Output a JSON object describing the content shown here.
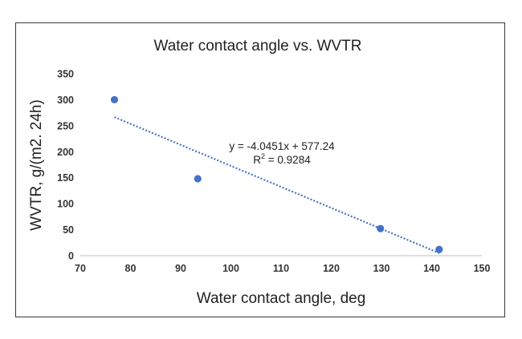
{
  "chart_data": {
    "type": "scatter",
    "title": "Water contact angle vs. WVTR",
    "xlabel": "Water contact angle, deg",
    "ylabel": "WVTR, g/(m2. 24h)",
    "xlim": [
      70,
      150
    ],
    "ylim": [
      0,
      350
    ],
    "xticks": [
      "70",
      "80",
      "90",
      "100",
      "110",
      "120",
      "130",
      "140",
      "150"
    ],
    "yticks": [
      "0",
      "50",
      "100",
      "150",
      "200",
      "250",
      "300",
      "350"
    ],
    "grid": false,
    "legend": "none",
    "points": [
      {
        "x": 76.8,
        "y": 300
      },
      {
        "x": 93.4,
        "y": 148
      },
      {
        "x": 129.8,
        "y": 52
      },
      {
        "x": 141.5,
        "y": 12
      }
    ],
    "trendline": {
      "type": "linear",
      "slope": -4.0451,
      "intercept": 577.24,
      "x_range": [
        76.8,
        141.5
      ],
      "style": "dotted",
      "equation_label": "y = -4.0451x + 577.24",
      "r2_prefix": "R",
      "r2_sup": "2",
      "r2_value": " = 0.9284"
    },
    "colors": {
      "marker": "#4472C4",
      "trendline": "#4472C4",
      "axis": "#bfbfbf",
      "frame": "#3a3a3a"
    }
  }
}
